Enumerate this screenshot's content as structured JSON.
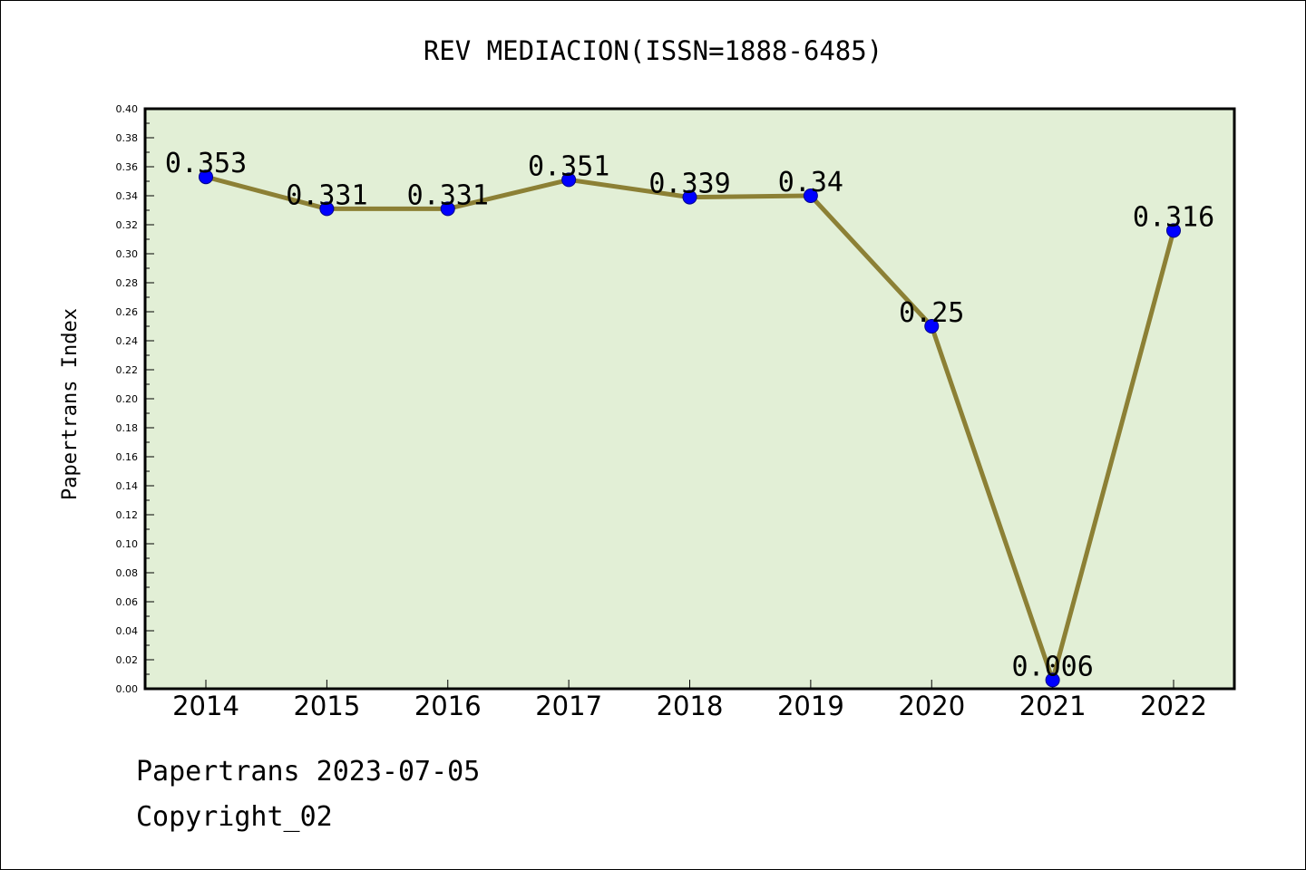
{
  "colors": {
    "plot_background": "#e2efd6",
    "line": "#8c8035",
    "marker": "#0000ff",
    "marker_edge": "#00008b",
    "text": "#000000"
  },
  "chart_data": {
    "type": "line",
    "title": "REV MEDIACION(ISSN=1888-6485)",
    "xlabel": "",
    "ylabel": "Papertrans Index",
    "categories": [
      "2014",
      "2015",
      "2016",
      "2017",
      "2018",
      "2019",
      "2020",
      "2021",
      "2022"
    ],
    "values": [
      0.353,
      0.331,
      0.331,
      0.351,
      0.339,
      0.34,
      0.25,
      0.006,
      0.316
    ],
    "data_labels": [
      "0.353",
      "0.331",
      "0.331",
      "0.351",
      "0.339",
      "0.34",
      "0.25",
      "0.006",
      "0.316"
    ],
    "ylim": [
      0,
      0.4
    ],
    "yticks": [
      "0.00",
      "0.02",
      "0.04",
      "0.06",
      "0.08",
      "0.10",
      "0.12",
      "0.14",
      "0.16",
      "0.18",
      "0.20",
      "0.22",
      "0.24",
      "0.26",
      "0.28",
      "0.30",
      "0.32",
      "0.34",
      "0.36",
      "0.38",
      "0.40"
    ],
    "grid": false,
    "legend": "none"
  },
  "footer": {
    "line1": "Papertrans 2023-07-05",
    "line2": "Copyright_02"
  }
}
